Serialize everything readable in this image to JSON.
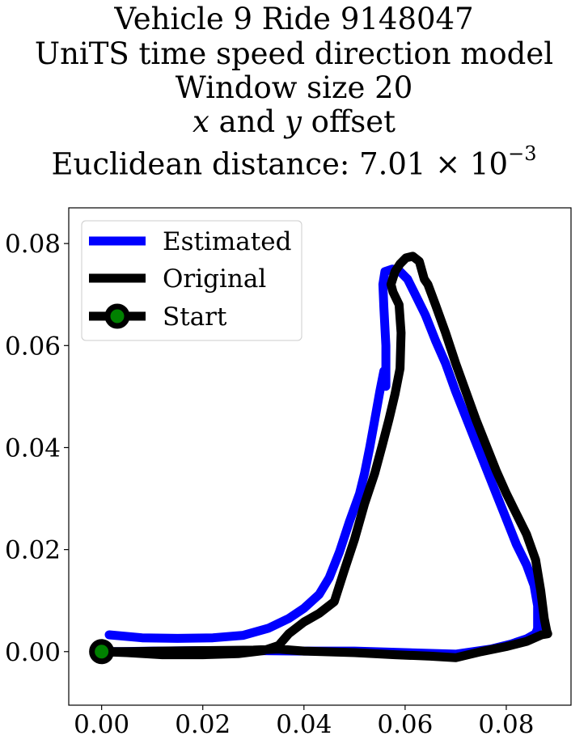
{
  "chart_data": {
    "type": "line",
    "title_lines": [
      "Vehicle 9 Ride 9148047",
      "UniTS time speed direction model",
      "Window size 20",
      "x and y offset",
      "Euclidean distance: 7.01 × 10⁻³"
    ],
    "title_var_x": "x",
    "title_var_y": "y",
    "title_and": " and ",
    "title_offset": " offset",
    "title_dist_prefix": "Euclidean distance: 7.01 × 10",
    "title_dist_exp": "−3",
    "xlim": [
      -0.0065,
      0.0928
    ],
    "ylim": [
      -0.0105,
      0.087
    ],
    "xticks": [
      0.0,
      0.02,
      0.04,
      0.06,
      0.08
    ],
    "yticks": [
      0.0,
      0.02,
      0.04,
      0.06,
      0.08
    ],
    "xtick_labels": [
      "0.00",
      "0.02",
      "0.04",
      "0.06",
      "0.08"
    ],
    "ytick_labels": [
      "0.00",
      "0.02",
      "0.04",
      "0.06",
      "0.08"
    ],
    "grid": false,
    "legend_position": "top-left",
    "legend": [
      "Estimated",
      "Original",
      "Start"
    ],
    "series": [
      {
        "name": "Estimated",
        "color": "#0000ff",
        "x": [
          0.0015,
          0.008,
          0.015,
          0.022,
          0.028,
          0.033,
          0.037,
          0.04,
          0.043,
          0.045,
          0.047,
          0.049,
          0.051,
          0.052,
          0.053,
          0.054,
          0.055,
          0.0558,
          0.0562,
          0.0562,
          0.0558,
          0.0556,
          0.056,
          0.0575,
          0.059,
          0.0605,
          0.062,
          0.064,
          0.066,
          0.068,
          0.07,
          0.072,
          0.074,
          0.076,
          0.078,
          0.08,
          0.082,
          0.084,
          0.0855,
          0.0862,
          0.0862,
          0.0858,
          0.084,
          0.081,
          0.077,
          0.07,
          0.06,
          0.05,
          0.04,
          0.03,
          0.02,
          0.01,
          0.004,
          0.0
        ],
        "y": [
          0.0033,
          0.0027,
          0.0026,
          0.0027,
          0.0032,
          0.0046,
          0.0065,
          0.0085,
          0.0112,
          0.0145,
          0.0195,
          0.0255,
          0.031,
          0.035,
          0.04,
          0.0455,
          0.051,
          0.055,
          0.052,
          0.06,
          0.0675,
          0.072,
          0.0745,
          0.075,
          0.0745,
          0.073,
          0.07,
          0.066,
          0.061,
          0.0565,
          0.051,
          0.046,
          0.041,
          0.036,
          0.031,
          0.026,
          0.021,
          0.017,
          0.013,
          0.009,
          0.0045,
          0.0035,
          0.0025,
          0.0015,
          0.0005,
          -0.0005,
          -0.0002,
          0.0001,
          0.0001,
          0.0002,
          0.0002,
          0.0001,
          0.0,
          0.0
        ]
      },
      {
        "name": "Original",
        "color": "#000000",
        "x": [
          0.0,
          0.005,
          0.012,
          0.02,
          0.027,
          0.032,
          0.035,
          0.037,
          0.04,
          0.043,
          0.046,
          0.048,
          0.05,
          0.052,
          0.054,
          0.0555,
          0.0568,
          0.058,
          0.059,
          0.0592,
          0.0588,
          0.0576,
          0.0572,
          0.058,
          0.059,
          0.0602,
          0.0615,
          0.0628,
          0.0638,
          0.0645,
          0.066,
          0.068,
          0.07,
          0.072,
          0.074,
          0.076,
          0.078,
          0.08,
          0.082,
          0.084,
          0.0858,
          0.0868,
          0.0875,
          0.088,
          0.0882,
          0.087,
          0.084,
          0.08,
          0.075,
          0.07,
          0.065,
          0.058,
          0.05,
          0.04,
          0.035,
          0.03,
          0.02,
          0.012,
          0.006,
          0.002,
          0.0
        ],
        "y": [
          0.0,
          -0.0002,
          -0.0006,
          -0.0006,
          -0.0004,
          0.0002,
          0.0012,
          0.0035,
          0.0058,
          0.0075,
          0.0098,
          0.016,
          0.022,
          0.029,
          0.035,
          0.0405,
          0.0455,
          0.0505,
          0.0555,
          0.0625,
          0.068,
          0.0705,
          0.072,
          0.0745,
          0.076,
          0.0772,
          0.0775,
          0.0765,
          0.073,
          0.072,
          0.068,
          0.0625,
          0.0565,
          0.051,
          0.0455,
          0.0405,
          0.0355,
          0.031,
          0.027,
          0.023,
          0.018,
          0.012,
          0.0065,
          0.004,
          0.0035,
          0.0033,
          0.002,
          0.001,
          0.0,
          -0.0012,
          -0.0009,
          -0.0006,
          -0.0002,
          0.0001,
          0.0005,
          0.0003,
          0.0002,
          0.0001,
          0.0,
          0.0,
          0.0
        ]
      }
    ],
    "start_point": {
      "name": "Start",
      "x": 0.0,
      "y": 0.0,
      "fill": "#008000",
      "edge": "#000000"
    }
  }
}
